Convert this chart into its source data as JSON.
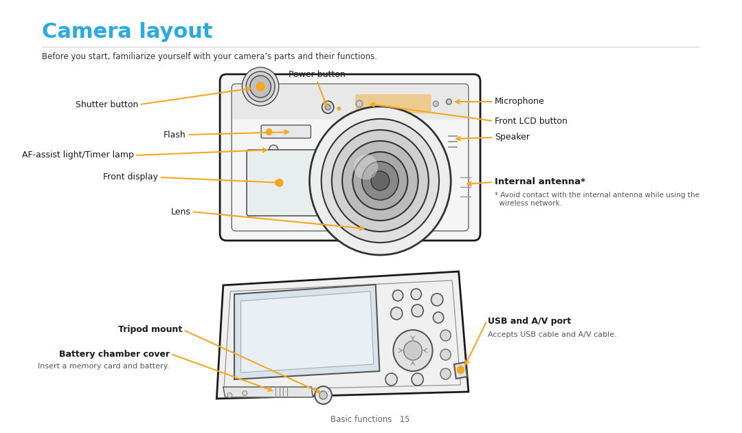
{
  "title": "Camera layout",
  "title_color": "#29abe2",
  "subtitle": "Before you start, familiarize yourself with your camera’s parts and their functions.",
  "subtitle_color": "#333333",
  "footer": "Basic functions   15",
  "footer_color": "#666666",
  "arrow_color": "#f5a623",
  "label_color": "#1a1a1a",
  "bg_color": "#ffffff",
  "note_color": "#555555",
  "internal_antenna_note": "* Avoid contact with the internal antenna while using the\n  wireless network.",
  "battery_note": "Insert a memory card and battery.",
  "usb_note": "Accepts USB cable and A/V cable."
}
